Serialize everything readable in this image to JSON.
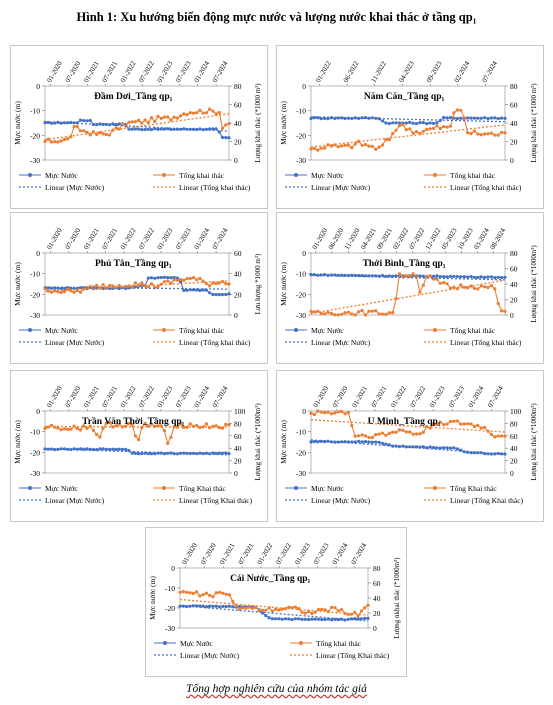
{
  "figure_title": "Hình 1: Xu hướng biến động mực nước và lượng nước khai thác ở tầng qp₁",
  "caption": "Tổng hợp nghiên cứu của nhóm tác giả",
  "colors": {
    "water_level": "#4472c4",
    "extraction": "#ed7d31"
  },
  "chart_data": [
    {
      "type": "line",
      "title": "Đầm Dơi_Tầng qp₁",
      "xtick_labels": [
        "01-2020",
        "07-2020",
        "01-2021",
        "07-2021",
        "01-2022",
        "07-2022",
        "01-2023",
        "07-2023",
        "01-2024",
        "07-2024"
      ],
      "ylabel_left": "Mực nước (m)",
      "ylabel_right": "Lượng khai thác (*1000 m³)",
      "y_left_ticks": [
        "0",
        "-10",
        "-20",
        "-30"
      ],
      "y_left_range": [
        -30,
        0
      ],
      "y_right_ticks": [
        "0",
        "20",
        "40",
        "60",
        "80"
      ],
      "y_right_range": [
        0,
        80
      ],
      "legend": [
        "Mực Nước",
        "Tổng khai thác",
        "Linear (Mực Nước)",
        "Linear (Tổng khai thác)"
      ],
      "series": [
        {
          "name": "Mực Nước",
          "axis": "left",
          "knots": [
            [
              0,
              -15
            ],
            [
              0.18,
              -14.8
            ],
            [
              0.18,
              -14
            ],
            [
              0.25,
              -14
            ],
            [
              0.25,
              -15.5
            ],
            [
              0.45,
              -15.5
            ],
            [
              0.45,
              -17.5
            ],
            [
              0.94,
              -17.5
            ],
            [
              0.96,
              -21
            ],
            [
              1,
              -21
            ]
          ],
          "noise": 0.2
        },
        {
          "name": "Tổng khai thác",
          "axis": "left_on_right",
          "knots": [
            [
              0,
              20
            ],
            [
              0.13,
              22
            ],
            [
              0.16,
              35
            ],
            [
              0.2,
              32
            ],
            [
              0.27,
              28
            ],
            [
              0.34,
              28
            ],
            [
              0.45,
              40
            ],
            [
              0.55,
              42
            ],
            [
              0.62,
              45
            ],
            [
              0.68,
              45
            ],
            [
              0.78,
              52
            ],
            [
              0.88,
              53
            ],
            [
              0.95,
              52
            ],
            [
              0.96,
              36
            ],
            [
              1,
              40
            ]
          ],
          "noise": 2.5
        },
        {
          "name": "Linear (Mực Nước)",
          "axis": "left",
          "trend": [
            -14.5,
            -18.3
          ]
        },
        {
          "name": "Linear (Tổng khai thác)",
          "axis": "right",
          "trend": [
            22,
            50
          ]
        }
      ]
    },
    {
      "type": "line",
      "title": "Năm Căn_Tầng qp₁",
      "xtick_labels": [
        "01-2022",
        "06-2022",
        "11-2022",
        "04-2023",
        "09-2023",
        "02-2024",
        "07-2024"
      ],
      "ylabel_left": "Mực nước (m)",
      "ylabel_right": "Lượng khai thác (*1000 m³)",
      "y_left_ticks": [
        "0",
        "-10",
        "-20",
        "-30"
      ],
      "y_left_range": [
        -30,
        0
      ],
      "y_right_ticks": [
        "0",
        "20",
        "40",
        "60",
        "80"
      ],
      "y_right_range": [
        0,
        80
      ],
      "legend": [
        "Mực Nước",
        "Tổng khai thác",
        "Linear (Mực Nước)",
        "Linear (Tổng khai thác)"
      ],
      "series": [
        {
          "name": "Mực Nước",
          "axis": "left",
          "knots": [
            [
              0,
              -13
            ],
            [
              0.35,
              -13
            ],
            [
              0.38,
              -15
            ],
            [
              0.65,
              -15
            ],
            [
              0.68,
              -13
            ],
            [
              1,
              -13
            ]
          ],
          "noise": 0.25
        },
        {
          "name": "Tổng khai thác",
          "axis": "right",
          "knots": [
            [
              0,
              11
            ],
            [
              0.08,
              15
            ],
            [
              0.18,
              14
            ],
            [
              0.25,
              18
            ],
            [
              0.35,
              12
            ],
            [
              0.4,
              22
            ],
            [
              0.45,
              38
            ],
            [
              0.55,
              30
            ],
            [
              0.65,
              35
            ],
            [
              0.72,
              35
            ],
            [
              0.74,
              55
            ],
            [
              0.78,
              55
            ],
            [
              0.8,
              30
            ],
            [
              0.9,
              28
            ],
            [
              1,
              28
            ]
          ],
          "noise": 3
        },
        {
          "name": "Linear (Mực Nước)",
          "axis": "left",
          "trend": [
            -12.5,
            -14.5
          ]
        },
        {
          "name": "Linear (Tổng khai thác)",
          "axis": "right",
          "trend": [
            14,
            38
          ]
        }
      ]
    },
    {
      "type": "line",
      "title": "Phú Tân_Tầng qp₁",
      "xtick_labels": [
        "01-2020",
        "07-2020",
        "01-2021",
        "07-2021",
        "01-2022",
        "07-2022",
        "01-2023",
        "07-2023",
        "01-2024",
        "07-2024"
      ],
      "ylabel_left": "Mực nước (m)",
      "ylabel_right": "Lưu lượng *1000 m³)",
      "y_left_ticks": [
        "0",
        "-10",
        "-20",
        "-30"
      ],
      "y_left_range": [
        -30,
        0
      ],
      "y_right_ticks": [
        "0",
        "20",
        "40",
        "60"
      ],
      "y_right_range": [
        0,
        60
      ],
      "legend": [
        "Mực Nước",
        "Tổng khai thác",
        "Linear (Mực Nước)",
        "Linear (Tổng khai thác)"
      ],
      "series": [
        {
          "name": "Mực Nước",
          "axis": "left",
          "knots": [
            [
              0,
              -17
            ],
            [
              0.45,
              -17
            ],
            [
              0.5,
              -16
            ],
            [
              0.56,
              -16
            ],
            [
              0.56,
              -12
            ],
            [
              0.73,
              -12
            ],
            [
              0.75,
              -18
            ],
            [
              0.88,
              -18
            ],
            [
              0.9,
              -20
            ],
            [
              1,
              -20
            ]
          ],
          "noise": 0.25
        },
        {
          "name": "Tổng khai thác",
          "axis": "right",
          "knots": [
            [
              0,
              25
            ],
            [
              0.15,
              22
            ],
            [
              0.3,
              28
            ],
            [
              0.5,
              30
            ],
            [
              0.6,
              28
            ],
            [
              0.75,
              35
            ],
            [
              0.82,
              35
            ],
            [
              0.88,
              30
            ],
            [
              0.95,
              32
            ],
            [
              1,
              32
            ]
          ],
          "noise": 2.5
        },
        {
          "name": "Linear (Mực Nước)",
          "axis": "left",
          "trend": [
            -16.5,
            -17.5
          ]
        },
        {
          "name": "Linear (Tổng khai thác)",
          "axis": "right",
          "trend": [
            23,
            33
          ]
        }
      ]
    },
    {
      "type": "line",
      "title": "Thới Bình_Tầng qp₁",
      "xtick_labels": [
        "01-2020",
        "06-2020",
        "11-2020",
        "04-2021",
        "09-2021",
        "02-2022",
        "07-2022",
        "12-2022",
        "05-2023",
        "10-2023",
        "03-2024",
        "08-2024"
      ],
      "ylabel_left": "Mực nước (m)",
      "ylabel_right": "Lượng khai thác (*1000m³)",
      "y_left_ticks": [
        "0",
        "-10",
        "-20",
        "-30"
      ],
      "y_left_range": [
        -30,
        0
      ],
      "y_right_ticks": [
        "0",
        "20",
        "40",
        "60",
        "80"
      ],
      "y_right_range": [
        0,
        80
      ],
      "legend": [
        "Mực Nước",
        "Tổng khai thác",
        "Linear (Mực Nước)",
        "Linear (Tổng khai thác)"
      ],
      "series": [
        {
          "name": "Mực Nước",
          "axis": "left",
          "knots": [
            [
              0,
              -10.5
            ],
            [
              0.3,
              -11
            ],
            [
              0.6,
              -11.2
            ],
            [
              1,
              -11.8
            ]
          ],
          "noise": 0.2
        },
        {
          "name": "Tổng khai thác",
          "axis": "right",
          "knots": [
            [
              0,
              2
            ],
            [
              0.15,
              3
            ],
            [
              0.4,
              3
            ],
            [
              0.43,
              3
            ],
            [
              0.45,
              50
            ],
            [
              0.5,
              52
            ],
            [
              0.55,
              52
            ],
            [
              0.56,
              30
            ],
            [
              0.6,
              50
            ],
            [
              0.66,
              42
            ],
            [
              0.73,
              35
            ],
            [
              0.8,
              38
            ],
            [
              0.88,
              36
            ],
            [
              0.95,
              35
            ],
            [
              0.97,
              5
            ],
            [
              1,
              5
            ]
          ],
          "noise": 3
        },
        {
          "name": "Linear (Mực Nước)",
          "axis": "left",
          "trend": [
            -10.8,
            -13
          ]
        },
        {
          "name": "Linear (Tổng khai thác)",
          "axis": "right",
          "trend": [
            2,
            45
          ]
        }
      ]
    },
    {
      "type": "line",
      "title": "Trần Văn Thời_Tầng qp₁",
      "xtick_labels": [
        "01-2020",
        "07-2020",
        "01-2021",
        "07-2021",
        "01-2022",
        "07-2022",
        "01-2023",
        "07-2023",
        "01-2024",
        "07-2024"
      ],
      "ylabel_left": "Mực nước (m)",
      "ylabel_right": "Lượng khai thác (*1000m³)",
      "y_left_ticks": [
        "0",
        "-10",
        "-20",
        "-30"
      ],
      "y_left_range": [
        -30,
        0
      ],
      "y_right_ticks": [
        "0",
        "20",
        "40",
        "60",
        "80",
        "100"
      ],
      "y_right_range": [
        0,
        100
      ],
      "legend": [
        "Mực Nước",
        "Tổng Khai thác",
        "Linear (Mực Nước)",
        "Linear (Tổng Khai thác)"
      ],
      "series": [
        {
          "name": "Mực Nước",
          "axis": "left",
          "knots": [
            [
              0,
              -18.5
            ],
            [
              0.45,
              -18.5
            ],
            [
              0.47,
              -20.5
            ],
            [
              1,
              -20.5
            ]
          ],
          "noise": 0.2
        },
        {
          "name": "Tổng Khai thác",
          "axis": "right",
          "knots": [
            [
              0,
              75
            ],
            [
              0.15,
              72
            ],
            [
              0.25,
              75
            ],
            [
              0.3,
              58
            ],
            [
              0.33,
              78
            ],
            [
              0.48,
              78
            ],
            [
              0.5,
              40
            ],
            [
              0.53,
              78
            ],
            [
              0.64,
              75
            ],
            [
              0.67,
              40
            ],
            [
              0.7,
              78
            ],
            [
              0.85,
              76
            ],
            [
              1,
              75
            ]
          ],
          "noise": 4
        },
        {
          "name": "Linear (Mực Nước)",
          "axis": "left",
          "trend": [
            -18.3,
            -21.2
          ]
        },
        {
          "name": "Linear (Tổng Khai thác)",
          "axis": "right",
          "trend": [
            75,
            74
          ]
        }
      ]
    },
    {
      "type": "line",
      "title": "U Minh_Tầng qp₁",
      "xtick_labels": [
        "01-2020",
        "07-2020",
        "01-2021",
        "07-2021",
        "01-2022",
        "07-2022",
        "01-2023",
        "07-2023",
        "01-2024",
        "07-2024"
      ],
      "ylabel_left": "Mực nước (m)",
      "ylabel_right": "Lượng khai thác (*1000m³)",
      "y_left_ticks": [
        "0",
        "-10",
        "-20",
        "-30"
      ],
      "y_left_range": [
        -30,
        0
      ],
      "y_right_ticks": [
        "0",
        "20",
        "40",
        "60",
        "80",
        "100"
      ],
      "y_right_range": [
        0,
        100
      ],
      "legend": [
        "Mực Nước",
        "Tổng Khai thác",
        "Linear (Mực Nước)",
        "Linear (Tổng Khai thác)"
      ],
      "series": [
        {
          "name": "Mực Nước",
          "axis": "left",
          "knots": [
            [
              0,
              -14.8
            ],
            [
              0.35,
              -15
            ],
            [
              0.42,
              -17
            ],
            [
              0.75,
              -18
            ],
            [
              0.8,
              -20
            ],
            [
              1,
              -21
            ]
          ],
          "noise": 0.25
        },
        {
          "name": "Tổng Khai thác",
          "axis": "right",
          "knots": [
            [
              0,
              98
            ],
            [
              0.2,
              98
            ],
            [
              0.22,
              60
            ],
            [
              0.4,
              62
            ],
            [
              0.45,
              70
            ],
            [
              0.55,
              62
            ],
            [
              0.65,
              82
            ],
            [
              0.78,
              80
            ],
            [
              0.88,
              75
            ],
            [
              0.95,
              60
            ],
            [
              1,
              62
            ]
          ],
          "noise": 4
        },
        {
          "name": "Linear (Mực Nước)",
          "axis": "left",
          "trend": [
            -14,
            -21
          ]
        },
        {
          "name": "Linear (Tổng Khai thác)",
          "axis": "right",
          "trend": [
            86,
            66
          ]
        }
      ]
    },
    {
      "type": "line",
      "title": "Cái Nước_Tầng qp₁",
      "xtick_labels": [
        "01-2020",
        "07-2020",
        "01-2021",
        "07-2021",
        "01-2022",
        "07-2022",
        "01-2023",
        "07-2023",
        "01-2024",
        "07-2024"
      ],
      "ylabel_left": "Mực nước (m)",
      "ylabel_right": "Lượng nkhai thác (*1000m³)",
      "y_left_ticks": [
        "0",
        "-10",
        "-20",
        "-30"
      ],
      "y_left_range": [
        -30,
        0
      ],
      "y_right_ticks": [
        "0",
        "20",
        "40",
        "60",
        "80"
      ],
      "y_right_range": [
        0,
        80
      ],
      "legend": [
        "Mực Nước",
        "Tổng khai thác",
        "Linear (Mực Nước)",
        "Linear (Tổng Khai thác)"
      ],
      "series": [
        {
          "name": "Mực Nước",
          "axis": "left",
          "knots": [
            [
              0,
              -19
            ],
            [
              0.4,
              -19.5
            ],
            [
              0.48,
              -25.5
            ],
            [
              0.88,
              -25.8
            ],
            [
              0.9,
              -25.5
            ],
            [
              1,
              -25.2
            ]
          ],
          "noise": 0.2
        },
        {
          "name": "Tổng khai thác",
          "axis": "right",
          "knots": [
            [
              0,
              48
            ],
            [
              0.15,
              44
            ],
            [
              0.25,
              46
            ],
            [
              0.3,
              28
            ],
            [
              0.45,
              25
            ],
            [
              0.6,
              27
            ],
            [
              0.7,
              20
            ],
            [
              0.82,
              26
            ],
            [
              0.88,
              20
            ],
            [
              0.95,
              18
            ],
            [
              1,
              30
            ]
          ],
          "noise": 3
        },
        {
          "name": "Linear (Mực Nước)",
          "axis": "left",
          "trend": [
            -18.8,
            -26.5
          ]
        },
        {
          "name": "Linear (Tổng Khai thác)",
          "axis": "right",
          "trend": [
            38,
            17
          ]
        }
      ]
    }
  ]
}
